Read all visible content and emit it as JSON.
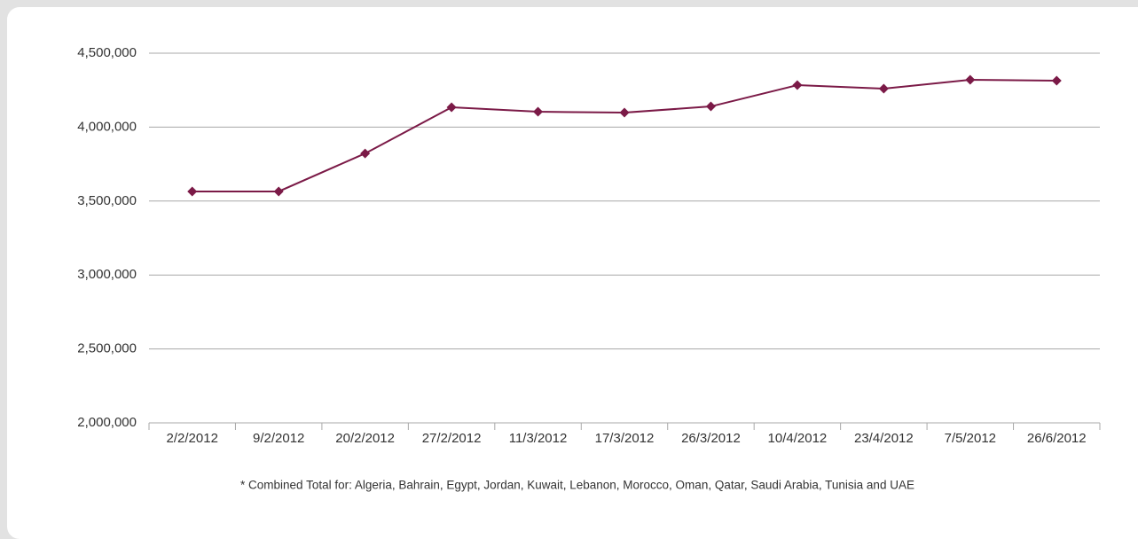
{
  "chart_data": {
    "type": "line",
    "categories": [
      "2/2/2012",
      "9/2/2012",
      "20/2/2012",
      "27/2/2012",
      "11/3/2012",
      "17/3/2012",
      "26/3/2012",
      "10/4/2012",
      "23/4/2012",
      "7/5/2012",
      "26/6/2012"
    ],
    "values": [
      3565000,
      3565000,
      3822000,
      4134000,
      4104000,
      4098000,
      4140000,
      4284000,
      4260000,
      4320000,
      4314000
    ],
    "color": "#7b1a47",
    "ylim": [
      2000000,
      4500000
    ],
    "yticks": [
      {
        "value": 2000000,
        "label": "2,000,000"
      },
      {
        "value": 2500000,
        "label": "2,500,000"
      },
      {
        "value": 3000000,
        "label": "3,000,000"
      },
      {
        "value": 3500000,
        "label": "3,500,000"
      },
      {
        "value": 4000000,
        "label": "4,000,000"
      },
      {
        "value": 4500000,
        "label": "4,500,000"
      }
    ],
    "grid": true,
    "annotation": "* Combined Total for: Algeria, Bahrain, Egypt, Jordan, Kuwait, Lebanon, Morocco, Oman, Qatar, Saudi Arabia, Tunisia and UAE"
  }
}
